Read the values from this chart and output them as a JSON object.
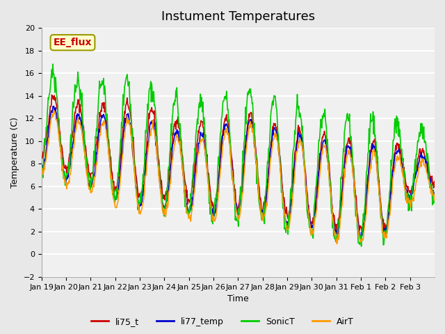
{
  "title": "Instument Temperatures",
  "xlabel": "Time",
  "ylabel": "Temperature (C)",
  "ylim": [
    -2,
    20
  ],
  "yticks": [
    -2,
    0,
    2,
    4,
    6,
    8,
    10,
    12,
    14,
    16,
    18,
    20
  ],
  "x_tick_labels": [
    "Jan 19",
    "Jan 20",
    "Jan 21",
    "Jan 22",
    "Jan 23",
    "Jan 24",
    "Jan 25",
    "Jan 26",
    "Jan 27",
    "Jan 28",
    "Jan 29",
    "Jan 30",
    "Jan 31",
    "Feb 1",
    "Feb 2",
    "Feb 3"
  ],
  "series": {
    "li75_t": {
      "color": "#cc0000",
      "lw": 1.2
    },
    "li77_temp": {
      "color": "#0000cc",
      "lw": 1.2
    },
    "SonicT": {
      "color": "#00cc00",
      "lw": 1.2
    },
    "AirT": {
      "color": "#ff9900",
      "lw": 1.2
    }
  },
  "annotation_text": "EE_flux",
  "annotation_color": "#cc0000",
  "annotation_bg": "#ffffcc",
  "background_color": "#e8e8e8",
  "plot_bg": "#f0f0f0",
  "grid_color": "#ffffff",
  "title_fontsize": 13,
  "axis_fontsize": 9,
  "tick_fontsize": 8,
  "legend_fontsize": 9
}
